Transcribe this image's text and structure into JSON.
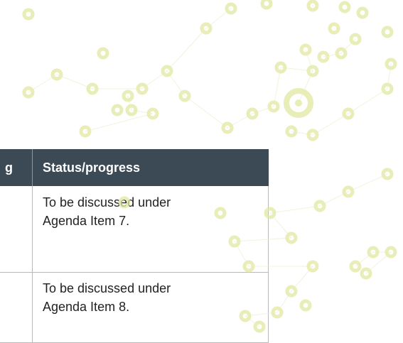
{
  "table": {
    "header": [
      "g",
      "Status/progress"
    ],
    "rows": [
      "To be discussed under Agenda Item 7.",
      "To be discussed under Agenda Item 8."
    ]
  }
}
